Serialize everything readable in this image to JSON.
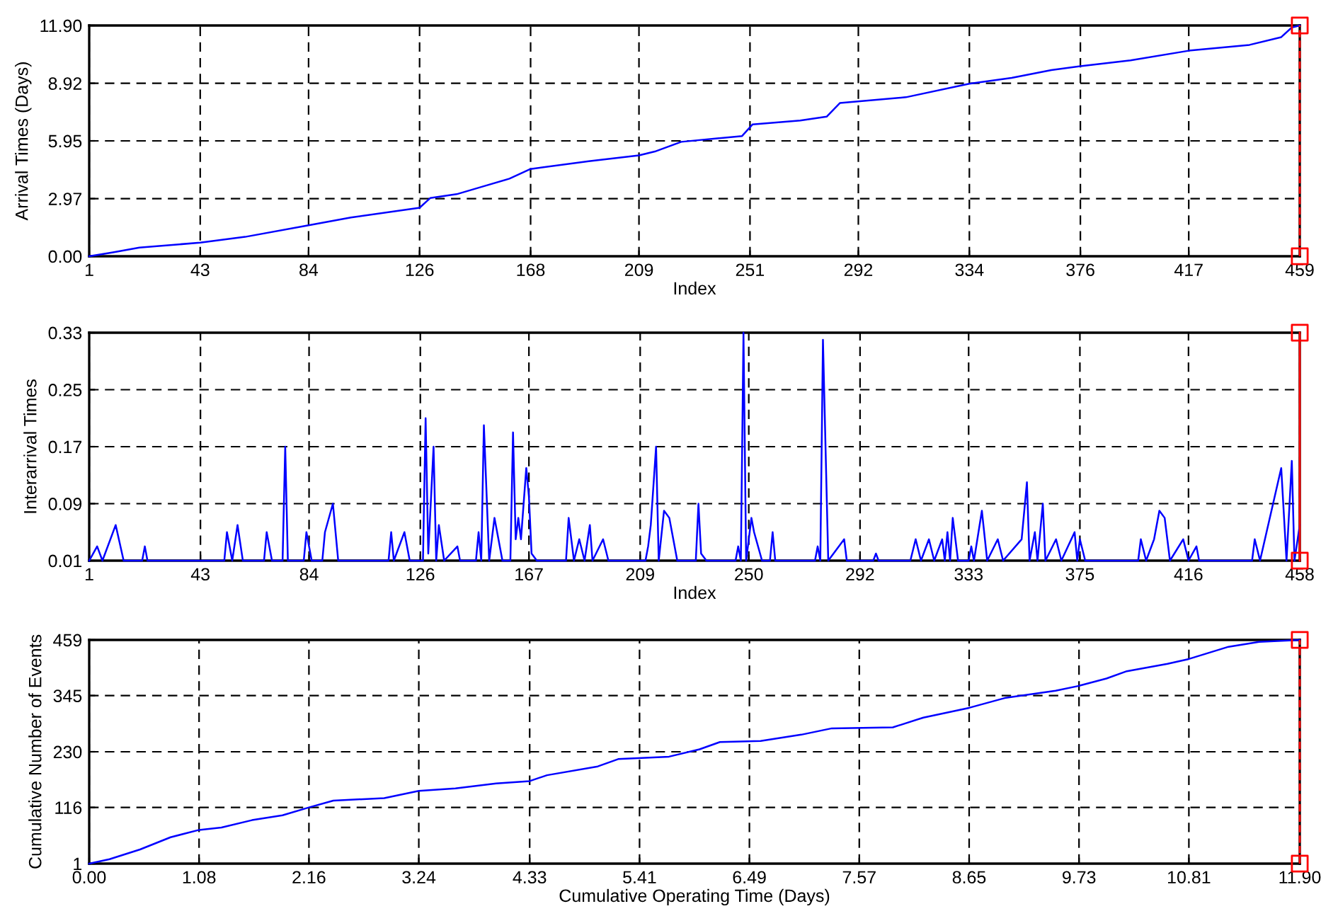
{
  "chart_data": [
    {
      "type": "line",
      "xlabel": "Index",
      "ylabel": "Arrival Times (Days)",
      "xlim": [
        1,
        459
      ],
      "ylim": [
        0,
        11.9
      ],
      "xticks": [
        1,
        43,
        84,
        126,
        168,
        209,
        251,
        292,
        334,
        376,
        417,
        459
      ],
      "yticks": [
        {
          "value": 0,
          "label": "0.00"
        },
        2.97,
        5.95,
        8.92,
        {
          "value": 11.9,
          "label": "11.90"
        }
      ],
      "grid": true,
      "series": [
        {
          "color": "#0000ff",
          "line_style": "solid",
          "marker": "none",
          "x": [
            1,
            10,
            20,
            43,
            60,
            84,
            100,
            126,
            130,
            140,
            150,
            160,
            168,
            190,
            209,
            215,
            225,
            248,
            252,
            270,
            280,
            285,
            310,
            334,
            350,
            365,
            376,
            395,
            417,
            440,
            452,
            456,
            459
          ],
          "values": [
            0,
            0.2,
            0.45,
            0.7,
            1.0,
            1.6,
            2.0,
            2.5,
            3.0,
            3.2,
            3.6,
            4.0,
            4.5,
            4.9,
            5.2,
            5.4,
            5.9,
            6.2,
            6.8,
            7.0,
            7.2,
            7.9,
            8.2,
            8.9,
            9.2,
            9.6,
            9.8,
            10.1,
            10.6,
            10.9,
            11.3,
            11.8,
            11.9
          ]
        },
        {
          "type": "scatter",
          "color": "#ff0000",
          "marker": "square",
          "x": [
            459,
            459
          ],
          "values": [
            0,
            11.9
          ]
        }
      ],
      "ref_lines": [
        {
          "axis": "x",
          "value": 459,
          "color": "#ff0000",
          "line_style": "dashed"
        }
      ]
    },
    {
      "type": "line",
      "xlabel": "Index",
      "ylabel": "Interarrival Times",
      "xlim": [
        1,
        458
      ],
      "ylim": [
        0.01,
        0.33
      ],
      "xticks": [
        1,
        43,
        84,
        126,
        167,
        209,
        250,
        292,
        333,
        375,
        416,
        458
      ],
      "yticks": [
        0.01,
        0.09,
        0.17,
        0.25,
        0.33
      ],
      "grid": true,
      "series": [
        {
          "color": "#0000ff",
          "line_style": "solid",
          "marker": "none",
          "x": [
            1,
            4,
            6,
            11,
            14,
            21,
            22,
            23,
            52,
            53,
            55,
            57,
            59,
            67,
            68,
            70,
            74,
            75,
            76,
            82,
            83,
            85,
            89,
            90,
            93,
            95,
            114,
            115,
            116,
            120,
            122,
            127,
            128,
            129,
            131,
            132,
            133,
            135,
            140,
            141,
            147,
            148,
            149,
            150,
            152,
            154,
            157,
            160,
            161,
            162,
            163,
            164,
            166,
            167,
            168,
            170,
            181,
            182,
            184,
            186,
            188,
            190,
            191,
            195,
            197,
            211,
            212,
            213,
            215,
            216,
            218,
            220,
            223,
            230,
            231,
            232,
            234,
            245,
            246,
            247,
            248,
            249,
            251,
            252,
            255,
            258,
            259,
            260,
            275,
            276,
            277,
            278,
            280,
            286,
            287,
            297,
            298,
            299,
            311,
            313,
            315,
            318,
            320,
            323,
            324,
            325,
            326,
            327,
            329,
            333,
            334,
            335,
            338,
            340,
            344,
            346,
            353,
            355,
            356,
            358,
            359,
            361,
            362,
            366,
            368,
            373,
            374,
            375,
            377,
            397,
            398,
            400,
            403,
            405,
            407,
            409,
            414,
            416,
            419,
            420,
            440,
            441,
            443,
            451,
            453,
            455,
            456,
            458
          ],
          "values": [
            0.01,
            0.03,
            0.01,
            0.06,
            0.01,
            0.01,
            0.03,
            0.01,
            0.01,
            0.05,
            0.01,
            0.06,
            0.01,
            0.01,
            0.05,
            0.01,
            0.01,
            0.17,
            0.01,
            0.01,
            0.05,
            0.01,
            0.01,
            0.05,
            0.09,
            0.01,
            0.01,
            0.05,
            0.01,
            0.05,
            0.01,
            0.01,
            0.21,
            0.02,
            0.17,
            0.01,
            0.06,
            0.01,
            0.03,
            0.01,
            0.01,
            0.05,
            0.01,
            0.2,
            0.01,
            0.07,
            0.01,
            0.01,
            0.19,
            0.04,
            0.07,
            0.04,
            0.14,
            0.1,
            0.02,
            0.01,
            0.01,
            0.07,
            0.01,
            0.04,
            0.01,
            0.06,
            0.01,
            0.04,
            0.01,
            0.01,
            0.03,
            0.06,
            0.17,
            0.01,
            0.08,
            0.07,
            0.01,
            0.01,
            0.09,
            0.02,
            0.01,
            0.01,
            0.03,
            0.01,
            0.33,
            0.01,
            0.07,
            0.05,
            0.01,
            0.01,
            0.05,
            0.01,
            0.01,
            0.03,
            0.01,
            0.32,
            0.01,
            0.04,
            0.01,
            0.01,
            0.02,
            0.01,
            0.01,
            0.04,
            0.01,
            0.04,
            0.01,
            0.04,
            0.01,
            0.05,
            0.01,
            0.07,
            0.01,
            0.01,
            0.03,
            0.01,
            0.08,
            0.01,
            0.04,
            0.01,
            0.04,
            0.12,
            0.01,
            0.05,
            0.01,
            0.09,
            0.01,
            0.04,
            0.01,
            0.05,
            0.01,
            0.04,
            0.01,
            0.01,
            0.04,
            0.01,
            0.04,
            0.08,
            0.07,
            0.01,
            0.04,
            0.01,
            0.03,
            0.01,
            0.01,
            0.04,
            0.01,
            0.14,
            0.01,
            0.15,
            0.01,
            0.06
          ]
        },
        {
          "type": "scatter",
          "color": "#ff0000",
          "marker": "square",
          "x": [
            458,
            458
          ],
          "values": [
            0.01,
            0.33
          ]
        }
      ],
      "ref_lines": [
        {
          "axis": "x",
          "value": 458,
          "color": "#ff0000",
          "line_style": "solid"
        }
      ]
    },
    {
      "type": "line",
      "xlabel": "Cumulative Operating Time (Days)",
      "ylabel": "Cumulative Number of Events",
      "xlim": [
        0,
        11.9
      ],
      "ylim": [
        1,
        459
      ],
      "xticks": [
        {
          "value": 0,
          "label": "0.00"
        },
        1.08,
        2.16,
        3.24,
        4.33,
        5.41,
        6.49,
        7.57,
        8.65,
        9.73,
        10.81,
        {
          "value": 11.9,
          "label": "11.90"
        }
      ],
      "yticks": [
        1,
        116,
        230,
        345,
        459
      ],
      "grid": true,
      "series": [
        {
          "color": "#0000ff",
          "line_style": "solid",
          "marker": "none",
          "x": [
            0,
            0.2,
            0.5,
            0.8,
            1.08,
            1.3,
            1.6,
            1.9,
            2.16,
            2.4,
            2.9,
            3.24,
            3.6,
            4.0,
            4.33,
            4.5,
            5.0,
            5.2,
            5.7,
            6.0,
            6.2,
            6.6,
            7.0,
            7.3,
            7.9,
            8.2,
            8.65,
            9.0,
            9.5,
            9.73,
            10.0,
            10.2,
            10.6,
            10.81,
            11.2,
            11.5,
            11.9
          ],
          "values": [
            1,
            10,
            30,
            55,
            70,
            75,
            90,
            100,
            116,
            130,
            135,
            150,
            155,
            165,
            170,
            182,
            200,
            215,
            220,
            235,
            250,
            252,
            265,
            278,
            280,
            300,
            320,
            340,
            355,
            365,
            380,
            395,
            410,
            420,
            445,
            455,
            459
          ]
        },
        {
          "type": "scatter",
          "color": "#ff0000",
          "marker": "square",
          "x": [
            11.9,
            11.9
          ],
          "values": [
            1,
            459
          ]
        }
      ],
      "ref_lines": [
        {
          "axis": "x",
          "value": 11.9,
          "color": "#ff0000",
          "line_style": "dashed"
        }
      ]
    }
  ]
}
